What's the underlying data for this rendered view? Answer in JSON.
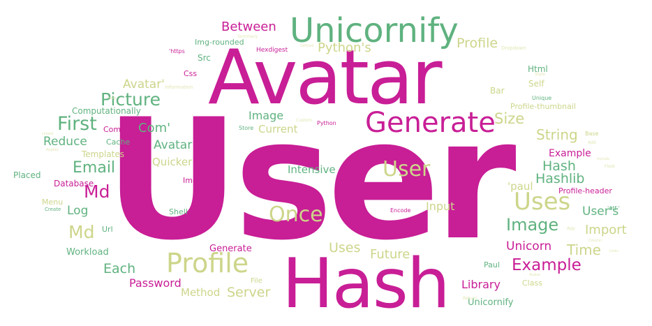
{
  "colors": {
    "magenta": "#c81e96",
    "green": "#5fb27f",
    "khaki": "#cdd58a",
    "pale": "#e2e6b4",
    "pink": "#d9479e"
  },
  "words": [
    {
      "id": "user",
      "text": "User",
      "color": "magenta"
    },
    {
      "id": "avatar-big",
      "text": "Avatar",
      "color": "magenta"
    },
    {
      "id": "hash-big",
      "text": "Hash",
      "color": "magenta"
    },
    {
      "id": "unicornify-big",
      "text": "Unicornify",
      "color": "green"
    },
    {
      "id": "generate",
      "text": "Generate",
      "color": "magenta"
    },
    {
      "id": "profile-big",
      "text": "Profile",
      "color": "khaki"
    },
    {
      "id": "uses-1",
      "text": "Uses",
      "color": "khaki"
    },
    {
      "id": "once",
      "text": "Once",
      "color": "khaki"
    },
    {
      "id": "user-2",
      "text": "User",
      "color": "khaki"
    },
    {
      "id": "picture",
      "text": "Picture",
      "color": "green"
    },
    {
      "id": "first",
      "text": "First",
      "color": "green"
    },
    {
      "id": "md-1",
      "text": "Md",
      "color": "magenta"
    },
    {
      "id": "md-2",
      "text": "Md",
      "color": "khaki"
    },
    {
      "id": "email",
      "text": "Email",
      "color": "green"
    },
    {
      "id": "image-1",
      "text": "Image",
      "color": "green"
    },
    {
      "id": "example-1",
      "text": "Example",
      "color": "magenta"
    },
    {
      "id": "between",
      "text": "Between",
      "color": "magenta"
    },
    {
      "id": "profile-2",
      "text": "Profile",
      "color": "khaki"
    },
    {
      "id": "pythons",
      "text": "Python's",
      "color": "khaki"
    },
    {
      "id": "avatar-q",
      "text": "Avatar'",
      "color": "khaki"
    },
    {
      "id": "com-q",
      "text": "Com'",
      "color": "green"
    },
    {
      "id": "avatar-3",
      "text": "Avatar",
      "color": "green"
    },
    {
      "id": "reduce",
      "text": "Reduce",
      "color": "green"
    },
    {
      "id": "size",
      "text": "Size",
      "color": "khaki"
    },
    {
      "id": "string",
      "text": "String",
      "color": "khaki"
    },
    {
      "id": "hash-2",
      "text": "Hash",
      "color": "green"
    },
    {
      "id": "hashlib",
      "text": "Hashlib",
      "color": "green"
    },
    {
      "id": "image-2",
      "text": "Image",
      "color": "green"
    },
    {
      "id": "each",
      "text": "Each",
      "color": "green"
    },
    {
      "id": "future",
      "text": "Future",
      "color": "khaki"
    },
    {
      "id": "uses-2",
      "text": "Uses",
      "color": "khaki"
    },
    {
      "id": "server",
      "text": "Server",
      "color": "khaki"
    },
    {
      "id": "password",
      "text": "Password",
      "color": "magenta"
    },
    {
      "id": "time",
      "text": "Time",
      "color": "khaki"
    },
    {
      "id": "import",
      "text": "Import",
      "color": "khaki"
    },
    {
      "id": "unicorn",
      "text": "Unicorn",
      "color": "magenta"
    },
    {
      "id": "example-2",
      "text": "Example",
      "color": "magenta"
    },
    {
      "id": "log",
      "text": "Log",
      "color": "green"
    },
    {
      "id": "library",
      "text": "Library",
      "color": "magenta"
    },
    {
      "id": "method",
      "text": "Method",
      "color": "khaki"
    },
    {
      "id": "unicornify-2",
      "text": "Unicornify",
      "color": "green"
    },
    {
      "id": "intensive",
      "text": "Intensive",
      "color": "green"
    },
    {
      "id": "current",
      "text": "Current",
      "color": "khaki"
    },
    {
      "id": "image-3",
      "text": "Image",
      "color": "khaki"
    },
    {
      "id": "quicker",
      "text": "Quicker",
      "color": "khaki"
    },
    {
      "id": "input",
      "text": "Input",
      "color": "khaki"
    },
    {
      "id": "generate-2",
      "text": "Generate",
      "color": "magenta"
    },
    {
      "id": "workload",
      "text": "Workload",
      "color": "green"
    },
    {
      "id": "computationally",
      "text": "Computationally",
      "color": "green"
    },
    {
      "id": "database",
      "text": "Database",
      "color": "magenta"
    },
    {
      "id": "templates",
      "text": "Templates",
      "color": "khaki"
    },
    {
      "id": "img-rounded",
      "text": "Img-rounded",
      "color": "green"
    },
    {
      "id": "profile-thumbnail",
      "text": "Profile-thumbnail",
      "color": "khaki"
    },
    {
      "id": "profile-header",
      "text": "Profile-header",
      "color": "magenta"
    },
    {
      "id": "users",
      "text": "User's",
      "color": "green"
    },
    {
      "id": "paul-q",
      "text": "'paul",
      "color": "khaki"
    },
    {
      "id": "placed",
      "text": "Placed",
      "color": "green"
    },
    {
      "id": "menu",
      "text": "Menu",
      "color": "khaki"
    },
    {
      "id": "cache",
      "text": "Cache",
      "color": "green"
    },
    {
      "id": "com",
      "text": "Com",
      "color": "magenta"
    },
    {
      "id": "src",
      "text": "Src",
      "color": "green"
    },
    {
      "id": "css",
      "text": "Css",
      "color": "magenta"
    },
    {
      "id": "html",
      "text": "Html",
      "color": "green"
    },
    {
      "id": "self",
      "text": "Self",
      "color": "khaki"
    },
    {
      "id": "bar",
      "text": "Bar",
      "color": "khaki"
    },
    {
      "id": "class",
      "text": "Class",
      "color": "khaki"
    },
    {
      "id": "paul",
      "text": "Paul",
      "color": "green"
    },
    {
      "id": "shell",
      "text": "Shell",
      "color": "green"
    },
    {
      "id": "url",
      "text": "Url",
      "color": "green"
    },
    {
      "id": "img",
      "text": "Img",
      "color": "magenta"
    },
    {
      "id": "file",
      "text": "File",
      "color": "khaki"
    },
    {
      "id": "hexdigest",
      "text": "Hexdigest",
      "color": "magenta"
    },
    {
      "id": "https",
      "text": "'https",
      "color": "magenta"
    },
    {
      "id": "python",
      "text": "Python",
      "color": "magenta"
    },
    {
      "id": "store",
      "text": "Store",
      "color": "green"
    },
    {
      "id": "encode",
      "text": "Encode",
      "color": "magenta"
    },
    {
      "id": "base",
      "text": "Base",
      "color": "khaki"
    },
    {
      "id": "unique",
      "text": "Unique",
      "color": "green"
    },
    {
      "id": "utf",
      "text": "'utf-'",
      "color": "green"
    },
    {
      "id": "information",
      "text": "Information",
      "color": "pale"
    },
    {
      "id": "dropdown",
      "text": "Dropdown",
      "color": "pale"
    },
    {
      "id": "summary",
      "text": "Summary",
      "color": "pale"
    },
    {
      "id": "style",
      "text": "Style",
      "color": "pale"
    },
    {
      "id": "add",
      "text": "Add",
      "color": "pale"
    },
    {
      "id": "flask",
      "text": "Flask",
      "color": "pale"
    },
    {
      "id": "custom",
      "text": "Custom",
      "color": "pale"
    },
    {
      "id": "create",
      "text": "Create",
      "color": "green"
    },
    {
      "id": "applies",
      "text": "Applies",
      "color": "pale"
    },
    {
      "id": "column",
      "text": "Column",
      "color": "pale"
    },
    {
      "id": "include",
      "text": "Include",
      "color": "pale"
    },
    {
      "id": "return",
      "text": "Return",
      "color": "pale"
    },
    {
      "id": "defined",
      "text": "Defined",
      "color": "pale"
    },
    {
      "id": "app",
      "text": "App",
      "color": "pale"
    },
    {
      "id": "linked",
      "text": "Linked",
      "color": "pale"
    },
    {
      "id": "links",
      "text": "Links",
      "color": "pale"
    },
    {
      "id": "avatar-s",
      "text": "Avatar",
      "color": "pale"
    },
    {
      "id": "help",
      "text": "Help",
      "color": "pale"
    }
  ]
}
